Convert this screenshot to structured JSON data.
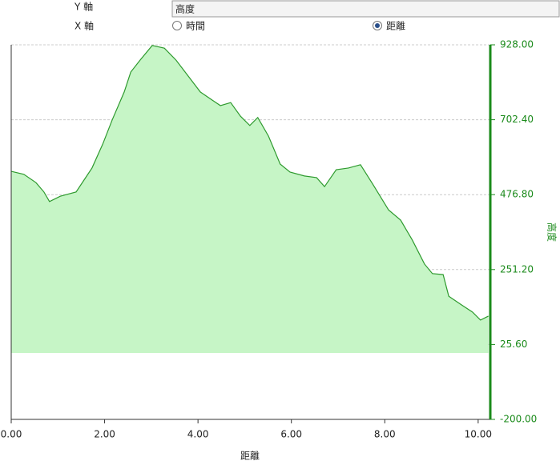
{
  "controls": {
    "y_axis_label": "Y 軸",
    "y_axis_selected": "高度",
    "x_axis_label": "X 軸",
    "x_options": [
      "時間",
      "距離"
    ],
    "x_selected": 1
  },
  "chart_data": {
    "type": "area",
    "xlabel": "距離",
    "ylabel": "高度",
    "color": "#2e9a2e",
    "fill": "#c6f5c6",
    "grid": true,
    "x": [
      0,
      0.27,
      0.53,
      0.7,
      0.82,
      1.05,
      1.39,
      1.56,
      1.73,
      1.96,
      2.16,
      2.42,
      2.56,
      2.76,
      3.02,
      3.28,
      3.53,
      3.79,
      4.05,
      4.3,
      4.48,
      4.7,
      4.91,
      5.11,
      5.28,
      5.51,
      5.76,
      5.97,
      6.28,
      6.54,
      6.71,
      6.96,
      7.22,
      7.48,
      7.74,
      8.08,
      8.34,
      8.59,
      8.85,
      9.02,
      9.25,
      9.37,
      9.62,
      9.88,
      10.05,
      10.22
    ],
    "values": [
      547,
      538,
      513,
      485,
      456,
      472,
      485,
      521,
      557,
      629,
      701,
      786,
      846,
      882,
      926,
      918,
      882,
      834,
      786,
      762,
      745,
      754,
      713,
      685,
      709,
      653,
      569,
      545,
      533,
      528,
      501,
      552,
      557,
      567,
      509,
      431,
      400,
      340,
      268,
      239,
      236,
      171,
      147,
      123,
      99,
      111
    ],
    "xlim": [
      0,
      10.26
    ],
    "ylim": [
      -200,
      928
    ],
    "xticks": [
      {
        "value": 0,
        "label": "0.00"
      },
      {
        "value": 2,
        "label": "2.00"
      },
      {
        "value": 4,
        "label": "4.00"
      },
      {
        "value": 6,
        "label": "6.00"
      },
      {
        "value": 8,
        "label": "8.00"
      },
      {
        "value": 10,
        "label": "10.00"
      }
    ],
    "yticks": [
      {
        "value": -200,
        "label": "-200.00"
      },
      {
        "value": 25.6,
        "label": "25.60"
      },
      {
        "value": 251.2,
        "label": "251.20"
      },
      {
        "value": 476.8,
        "label": "476.80"
      },
      {
        "value": 702.4,
        "label": "702.40"
      },
      {
        "value": 928,
        "label": "928.00"
      }
    ]
  }
}
